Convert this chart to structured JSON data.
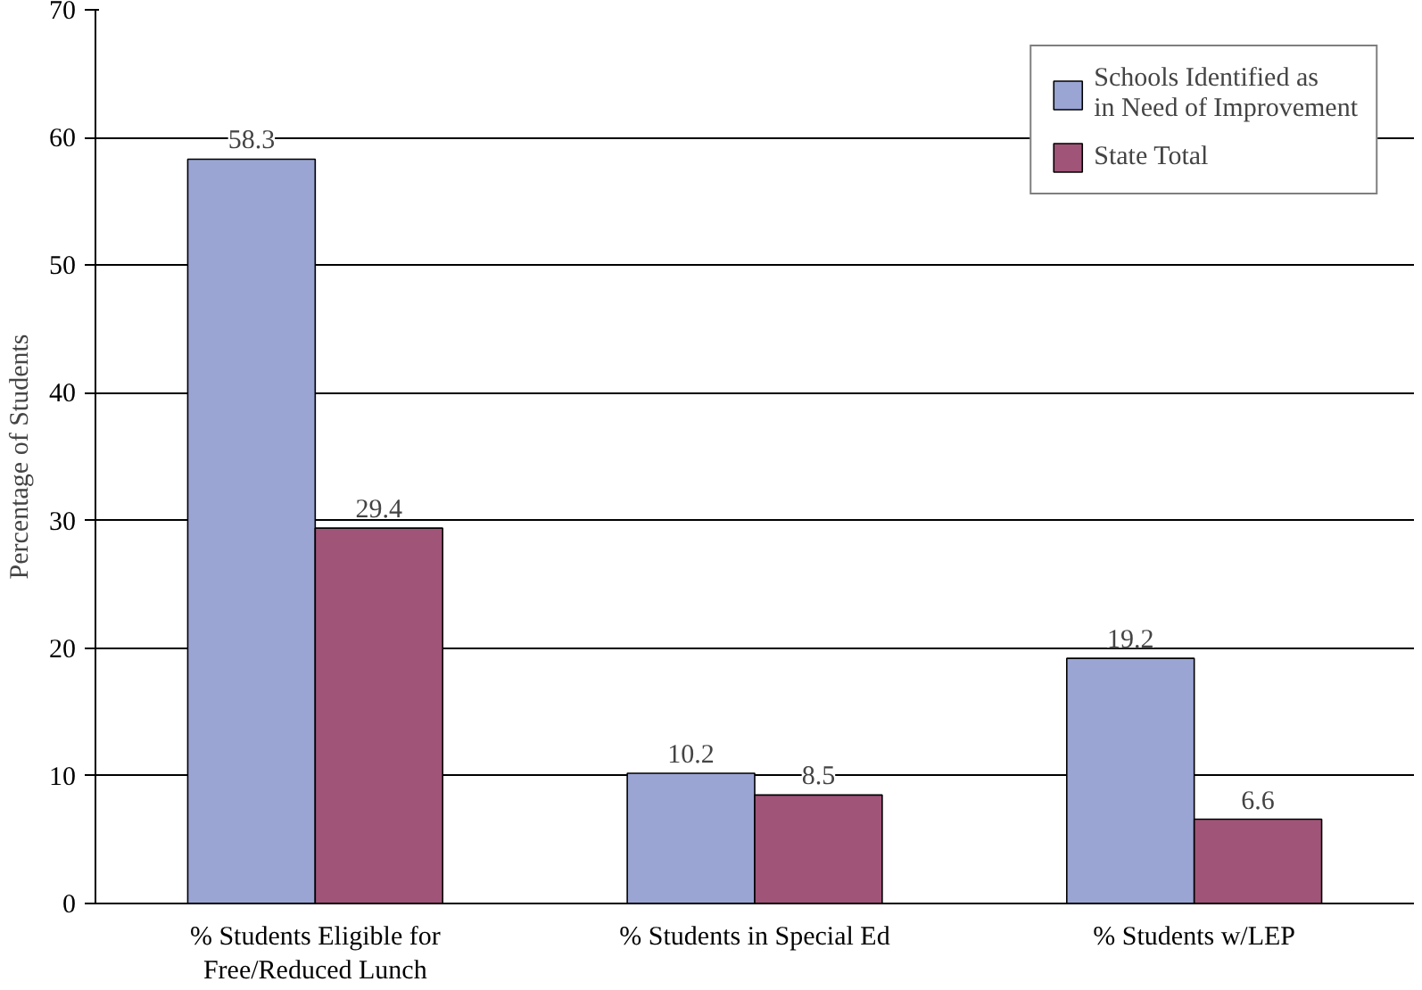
{
  "chart_data": {
    "type": "bar",
    "ylabel": "Percentage of Students",
    "categories": [
      "% Students Eligible for\nFree/Reduced Lunch",
      "% Students in Special Ed",
      "% Students w/LEP"
    ],
    "series": [
      {
        "name": "Schools Identified as\nin Need of Improvement",
        "color": "#9aa5d4",
        "values": [
          58.3,
          10.2,
          19.2
        ]
      },
      {
        "name": "State Total",
        "color": "#a05478",
        "values": [
          29.4,
          8.5,
          6.6
        ]
      }
    ],
    "ylim": [
      0,
      70
    ],
    "yticks": [
      0,
      10,
      20,
      30,
      40,
      50,
      60,
      70
    ],
    "grid": "y",
    "legend": "top right",
    "data_labels": true
  }
}
